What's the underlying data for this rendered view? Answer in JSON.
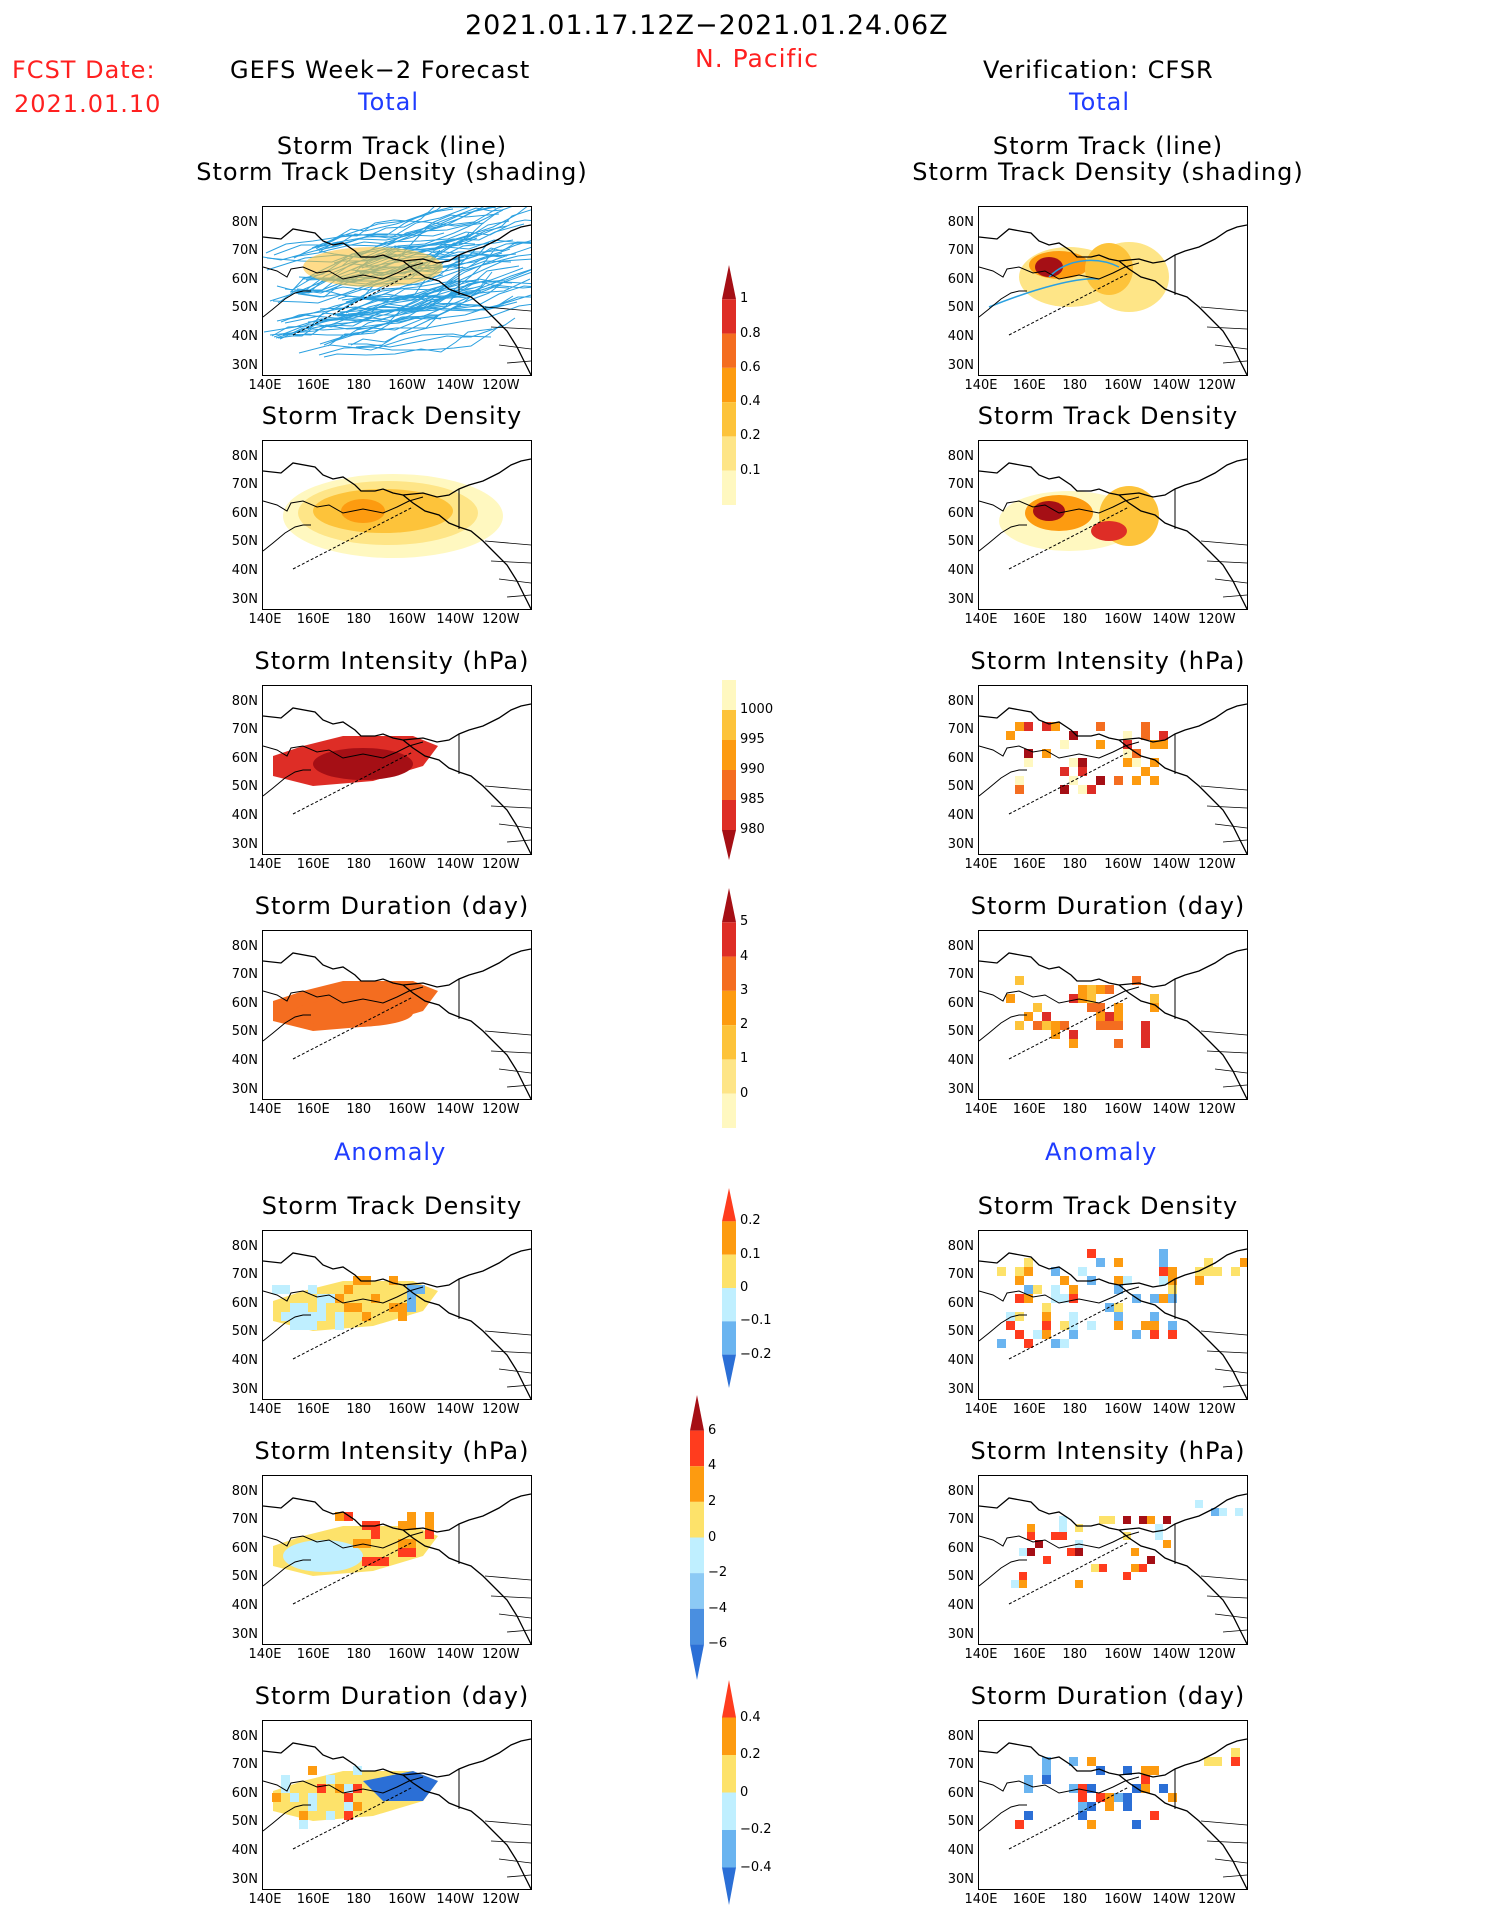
{
  "header": {
    "date_range": "2021.01.17.12Z−2021.01.24.06Z",
    "region": "N. Pacific",
    "fcst_label": "FCST Date:",
    "fcst_date": "2021.01.10",
    "left_title": "GEFS Week−2 Forecast",
    "right_title": "Verification: CFSR",
    "total_label": "Total",
    "anomaly_label": "Anomaly"
  },
  "panel_titles": {
    "track_line": "Storm Track (line)",
    "track_density_shading": "Storm Track Density (shading)",
    "track_density": "Storm Track Density",
    "intensity": "Storm Intensity (hPa)",
    "duration": "Storm Duration (day)"
  },
  "axes": {
    "lat_labels": [
      "80N",
      "70N",
      "60N",
      "50N",
      "40N",
      "30N"
    ],
    "lon_labels": [
      "140E",
      "160E",
      "180",
      "160W",
      "140W",
      "120W"
    ]
  },
  "colorbars": {
    "density": {
      "labels": [
        "1",
        "0.8",
        "0.6",
        "0.4",
        "0.2",
        "0.1"
      ],
      "colors": [
        "#a50f15",
        "#de2d26",
        "#f46d20",
        "#fd9b10",
        "#fdc33a",
        "#fee587",
        "#fff8c0"
      ]
    },
    "intensity": {
      "labels": [
        "1000",
        "995",
        "990",
        "985",
        "980"
      ],
      "colors": [
        "#fff8c0",
        "#fdc33a",
        "#fd9b10",
        "#f46d20",
        "#de2d26",
        "#a50f15"
      ]
    },
    "duration": {
      "labels": [
        "5",
        "4",
        "3",
        "2",
        "1",
        "0"
      ],
      "colors": [
        "#a50f15",
        "#de2d26",
        "#f46d20",
        "#fd9b10",
        "#fdc33a",
        "#fee587",
        "#fff8c0"
      ]
    },
    "anom_density": {
      "labels": [
        "0.2",
        "0.1",
        "0",
        "−0.1",
        "−0.2"
      ],
      "colors": [
        "#ff3c1e",
        "#fd9b10",
        "#fde26a",
        "#bfefff",
        "#6ab4f0",
        "#2b6fd6"
      ]
    },
    "anom_intensity": {
      "labels": [
        "6",
        "4",
        "2",
        "0",
        "−2",
        "−4",
        "−6"
      ],
      "colors": [
        "#a50f15",
        "#ff3c1e",
        "#fd9b10",
        "#fde26a",
        "#bfefff",
        "#8ccaf5",
        "#4a8fe0",
        "#2b6fd6"
      ]
    },
    "anom_duration": {
      "labels": [
        "0.4",
        "0.2",
        "0",
        "−0.2",
        "−0.4"
      ],
      "colors": [
        "#ff3c1e",
        "#fd9b10",
        "#fde26a",
        "#bfefff",
        "#6ab4f0",
        "#2b6fd6"
      ]
    }
  }
}
